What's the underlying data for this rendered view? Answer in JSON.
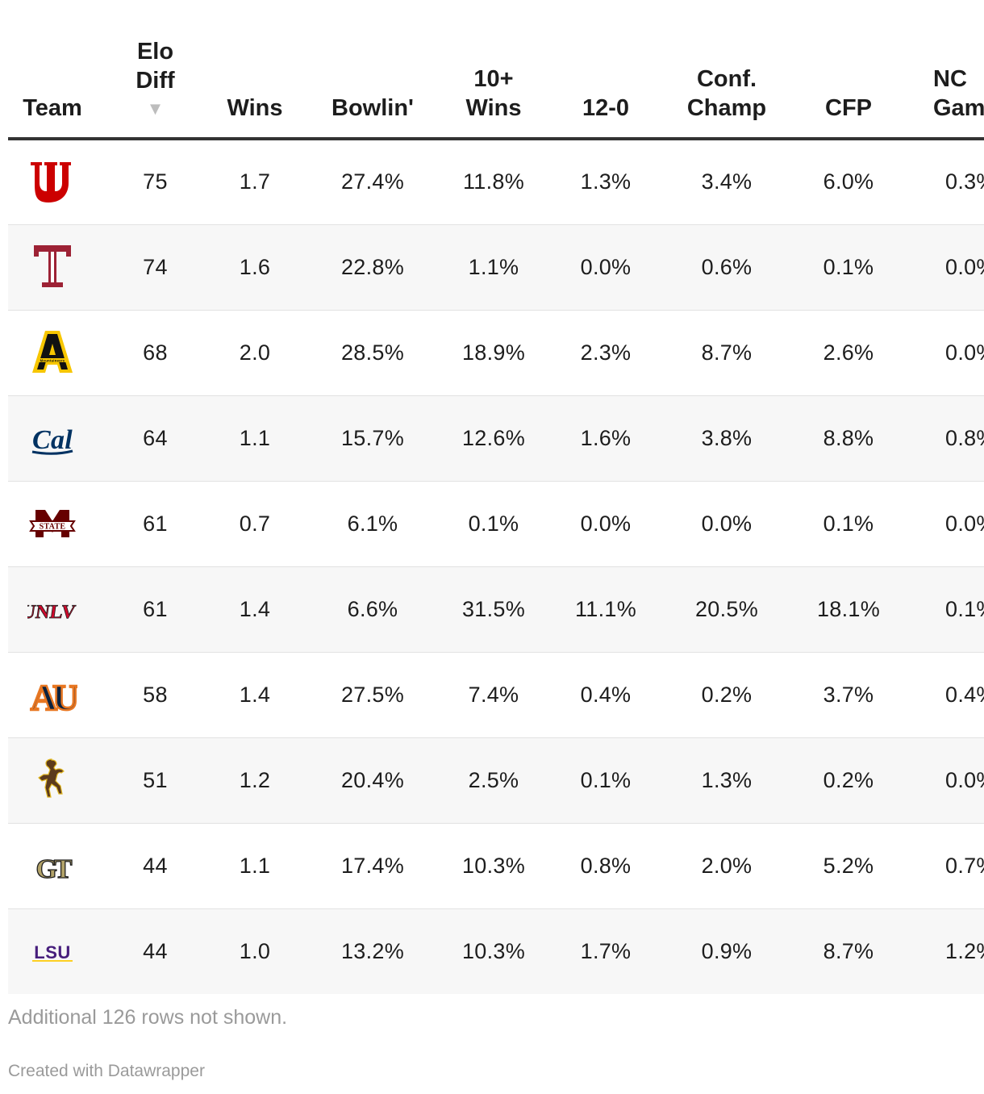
{
  "chart_data": {
    "type": "table",
    "columns": [
      {
        "key": "team",
        "label": "Team"
      },
      {
        "key": "elo_diff",
        "label": "Elo Diff",
        "sorted": "descending"
      },
      {
        "key": "wins",
        "label": "Wins"
      },
      {
        "key": "bowlin",
        "label": "Bowlin'"
      },
      {
        "key": "ten_wins",
        "label": "10+ Wins"
      },
      {
        "key": "undefeated",
        "label": "12-0"
      },
      {
        "key": "conf_champ",
        "label": "Conf. Champ"
      },
      {
        "key": "cfp",
        "label": "CFP"
      },
      {
        "key": "nc_game",
        "label": "NC Gam"
      }
    ],
    "sort_indicator": "▼",
    "rows": [
      {
        "logo": "utah-logo",
        "elo_diff": "75",
        "wins": "1.7",
        "bowlin": "27.4%",
        "ten_wins": "11.8%",
        "undefeated": "1.3%",
        "conf_champ": "3.4%",
        "cfp": "6.0%",
        "nc_game": "0.3%"
      },
      {
        "logo": "temple-logo",
        "elo_diff": "74",
        "wins": "1.6",
        "bowlin": "22.8%",
        "ten_wins": "1.1%",
        "undefeated": "0.0%",
        "conf_champ": "0.6%",
        "cfp": "0.1%",
        "nc_game": "0.0%"
      },
      {
        "logo": "appalachian-state-logo",
        "elo_diff": "68",
        "wins": "2.0",
        "bowlin": "28.5%",
        "ten_wins": "18.9%",
        "undefeated": "2.3%",
        "conf_champ": "8.7%",
        "cfp": "2.6%",
        "nc_game": "0.0%"
      },
      {
        "logo": "cal-logo",
        "elo_diff": "64",
        "wins": "1.1",
        "bowlin": "15.7%",
        "ten_wins": "12.6%",
        "undefeated": "1.6%",
        "conf_champ": "3.8%",
        "cfp": "8.8%",
        "nc_game": "0.8%"
      },
      {
        "logo": "mississippi-state-logo",
        "elo_diff": "61",
        "wins": "0.7",
        "bowlin": "6.1%",
        "ten_wins": "0.1%",
        "undefeated": "0.0%",
        "conf_champ": "0.0%",
        "cfp": "0.1%",
        "nc_game": "0.0%"
      },
      {
        "logo": "unlv-logo",
        "elo_diff": "61",
        "wins": "1.4",
        "bowlin": "6.6%",
        "ten_wins": "31.5%",
        "undefeated": "11.1%",
        "conf_champ": "20.5%",
        "cfp": "18.1%",
        "nc_game": "0.1%"
      },
      {
        "logo": "auburn-logo",
        "elo_diff": "58",
        "wins": "1.4",
        "bowlin": "27.5%",
        "ten_wins": "7.4%",
        "undefeated": "0.4%",
        "conf_champ": "0.2%",
        "cfp": "3.7%",
        "nc_game": "0.4%"
      },
      {
        "logo": "wyoming-logo",
        "elo_diff": "51",
        "wins": "1.2",
        "bowlin": "20.4%",
        "ten_wins": "2.5%",
        "undefeated": "0.1%",
        "conf_champ": "1.3%",
        "cfp": "0.2%",
        "nc_game": "0.0%"
      },
      {
        "logo": "georgia-tech-logo",
        "elo_diff": "44",
        "wins": "1.1",
        "bowlin": "17.4%",
        "ten_wins": "10.3%",
        "undefeated": "0.8%",
        "conf_champ": "2.0%",
        "cfp": "5.2%",
        "nc_game": "0.7%"
      },
      {
        "logo": "lsu-logo",
        "elo_diff": "44",
        "wins": "1.0",
        "bowlin": "13.2%",
        "ten_wins": "10.3%",
        "undefeated": "1.7%",
        "conf_champ": "0.9%",
        "cfp": "8.7%",
        "nc_game": "1.2%"
      }
    ],
    "colors": {
      "utah": "#cc0000",
      "temple": "#9d2235",
      "appalachian": "#f7c600",
      "cal": "#003262",
      "msstate": "#660000",
      "unlv": "#cf0a2c",
      "auburn_navy": "#0c2340",
      "auburn_orange": "#e87722",
      "wyoming": "#5c3b1c",
      "gt_gold": "#b3a369",
      "lsu": "#461d7c"
    }
  },
  "logo_text": {
    "cal": "Cal",
    "msstate": "STATE",
    "unlv": "UNLV",
    "auburn": "AU",
    "gt": "GT",
    "lsu": "LSU",
    "app": "A",
    "app_small": "Mountaineers"
  },
  "footer": {
    "note": "Additional 126 rows not shown.",
    "credit": "Created with Datawrapper"
  }
}
